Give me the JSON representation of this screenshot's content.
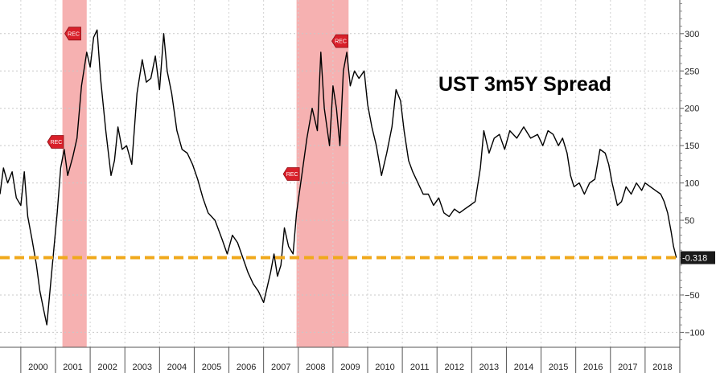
{
  "chart_data": {
    "type": "line",
    "title": "UST 3m5Y Spread",
    "xlabel": "",
    "ylabel": "",
    "x_categories": [
      "2000",
      "2001",
      "2002",
      "2003",
      "2004",
      "2005",
      "2006",
      "2007",
      "2008",
      "2009",
      "2010",
      "2011",
      "2012",
      "2013",
      "2014",
      "2015",
      "2016",
      "2017",
      "2018"
    ],
    "y_ticks": [
      300,
      250,
      200,
      150,
      100,
      50,
      -50,
      -100
    ],
    "ylim": [
      -120,
      345
    ],
    "xlim": [
      1999.4,
      2019.0
    ],
    "grid": true,
    "last_value_label": "-0.318",
    "reference_line": {
      "value": 0,
      "color": "#f0a91c"
    },
    "recession_shading": [
      {
        "start": 2001.2,
        "end": 2001.9,
        "color": "#f4a3a3"
      },
      {
        "start": 2007.95,
        "end": 2009.45,
        "color": "#f4a3a3"
      }
    ],
    "rec_markers": [
      {
        "label": "REC",
        "x": 2001.0,
        "y": 155
      },
      {
        "label": "REC",
        "x": 2001.5,
        "y": 300
      },
      {
        "label": "REC",
        "x": 2007.8,
        "y": 112
      },
      {
        "label": "REC",
        "x": 2009.2,
        "y": 290
      }
    ],
    "series": [
      {
        "line_color": "#000000",
        "points": [
          [
            1999.4,
            85
          ],
          [
            1999.5,
            120
          ],
          [
            1999.62,
            100
          ],
          [
            1999.75,
            115
          ],
          [
            1999.87,
            80
          ],
          [
            2000.0,
            70
          ],
          [
            2000.1,
            115
          ],
          [
            2000.2,
            55
          ],
          [
            2000.32,
            25
          ],
          [
            2000.45,
            -10
          ],
          [
            2000.55,
            -45
          ],
          [
            2000.66,
            -70
          ],
          [
            2000.75,
            -90
          ],
          [
            2000.85,
            -40
          ],
          [
            2000.95,
            10
          ],
          [
            2001.05,
            60
          ],
          [
            2001.15,
            120
          ],
          [
            2001.25,
            145
          ],
          [
            2001.35,
            110
          ],
          [
            2001.5,
            135
          ],
          [
            2001.62,
            160
          ],
          [
            2001.75,
            230
          ],
          [
            2001.9,
            275
          ],
          [
            2002.0,
            255
          ],
          [
            2002.1,
            295
          ],
          [
            2002.2,
            305
          ],
          [
            2002.3,
            240
          ],
          [
            2002.45,
            170
          ],
          [
            2002.6,
            110
          ],
          [
            2002.7,
            130
          ],
          [
            2002.8,
            175
          ],
          [
            2002.92,
            145
          ],
          [
            2003.05,
            150
          ],
          [
            2003.2,
            125
          ],
          [
            2003.35,
            220
          ],
          [
            2003.5,
            265
          ],
          [
            2003.62,
            235
          ],
          [
            2003.75,
            240
          ],
          [
            2003.88,
            270
          ],
          [
            2004.0,
            225
          ],
          [
            2004.12,
            300
          ],
          [
            2004.22,
            250
          ],
          [
            2004.35,
            220
          ],
          [
            2004.5,
            170
          ],
          [
            2004.65,
            145
          ],
          [
            2004.8,
            140
          ],
          [
            2004.95,
            125
          ],
          [
            2005.1,
            105
          ],
          [
            2005.25,
            80
          ],
          [
            2005.4,
            60
          ],
          [
            2005.6,
            50
          ],
          [
            2005.8,
            25
          ],
          [
            2005.95,
            5
          ],
          [
            2006.1,
            30
          ],
          [
            2006.25,
            20
          ],
          [
            2006.4,
            0
          ],
          [
            2006.55,
            -20
          ],
          [
            2006.7,
            -35
          ],
          [
            2006.85,
            -45
          ],
          [
            2007.0,
            -60
          ],
          [
            2007.1,
            -40
          ],
          [
            2007.2,
            -20
          ],
          [
            2007.3,
            5
          ],
          [
            2007.4,
            -25
          ],
          [
            2007.5,
            -10
          ],
          [
            2007.6,
            40
          ],
          [
            2007.72,
            15
          ],
          [
            2007.85,
            5
          ],
          [
            2007.95,
            60
          ],
          [
            2008.1,
            110
          ],
          [
            2008.25,
            160
          ],
          [
            2008.4,
            200
          ],
          [
            2008.55,
            170
          ],
          [
            2008.65,
            275
          ],
          [
            2008.75,
            200
          ],
          [
            2008.9,
            150
          ],
          [
            2009.0,
            230
          ],
          [
            2009.1,
            200
          ],
          [
            2009.2,
            150
          ],
          [
            2009.3,
            250
          ],
          [
            2009.4,
            275
          ],
          [
            2009.5,
            230
          ],
          [
            2009.62,
            250
          ],
          [
            2009.75,
            240
          ],
          [
            2009.9,
            250
          ],
          [
            2010.0,
            205
          ],
          [
            2010.12,
            175
          ],
          [
            2010.25,
            150
          ],
          [
            2010.4,
            110
          ],
          [
            2010.55,
            140
          ],
          [
            2010.7,
            175
          ],
          [
            2010.82,
            225
          ],
          [
            2010.95,
            210
          ],
          [
            2011.05,
            170
          ],
          [
            2011.18,
            130
          ],
          [
            2011.3,
            115
          ],
          [
            2011.45,
            100
          ],
          [
            2011.6,
            85
          ],
          [
            2011.75,
            85
          ],
          [
            2011.9,
            70
          ],
          [
            2012.05,
            80
          ],
          [
            2012.2,
            60
          ],
          [
            2012.35,
            55
          ],
          [
            2012.5,
            65
          ],
          [
            2012.65,
            60
          ],
          [
            2012.8,
            65
          ],
          [
            2012.95,
            70
          ],
          [
            2013.1,
            75
          ],
          [
            2013.25,
            120
          ],
          [
            2013.35,
            170
          ],
          [
            2013.5,
            140
          ],
          [
            2013.65,
            160
          ],
          [
            2013.8,
            165
          ],
          [
            2013.95,
            145
          ],
          [
            2014.1,
            170
          ],
          [
            2014.3,
            160
          ],
          [
            2014.5,
            175
          ],
          [
            2014.7,
            160
          ],
          [
            2014.9,
            165
          ],
          [
            2015.05,
            150
          ],
          [
            2015.2,
            170
          ],
          [
            2015.35,
            165
          ],
          [
            2015.5,
            150
          ],
          [
            2015.62,
            160
          ],
          [
            2015.75,
            140
          ],
          [
            2015.85,
            110
          ],
          [
            2015.95,
            95
          ],
          [
            2016.1,
            100
          ],
          [
            2016.25,
            85
          ],
          [
            2016.4,
            100
          ],
          [
            2016.55,
            105
          ],
          [
            2016.7,
            145
          ],
          [
            2016.85,
            140
          ],
          [
            2016.95,
            125
          ],
          [
            2017.05,
            100
          ],
          [
            2017.2,
            70
          ],
          [
            2017.32,
            75
          ],
          [
            2017.45,
            95
          ],
          [
            2017.6,
            85
          ],
          [
            2017.75,
            100
          ],
          [
            2017.9,
            90
          ],
          [
            2018.0,
            100
          ],
          [
            2018.15,
            95
          ],
          [
            2018.3,
            90
          ],
          [
            2018.45,
            85
          ],
          [
            2018.55,
            75
          ],
          [
            2018.65,
            60
          ],
          [
            2018.75,
            35
          ],
          [
            2018.82,
            15
          ],
          [
            2018.9,
            0
          ]
        ]
      }
    ]
  }
}
